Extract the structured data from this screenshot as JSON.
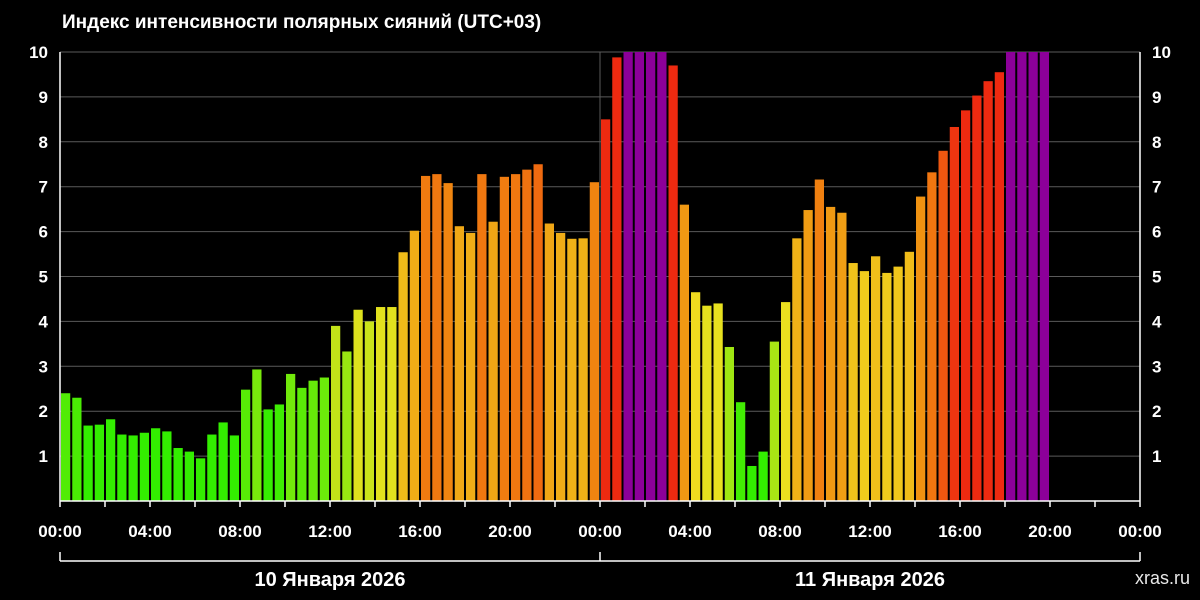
{
  "chart_data": {
    "type": "bar",
    "title": "Индекс интенсивности полярных сияний (UTC+03)",
    "y_range": [
      0,
      10
    ],
    "y_ticks": [
      "1",
      "2",
      "3",
      "4",
      "5",
      "6",
      "7",
      "8",
      "9",
      "10"
    ],
    "x_tick_labels": [
      "00:00",
      "04:00",
      "08:00",
      "12:00",
      "16:00",
      "20:00",
      "00:00",
      "04:00",
      "08:00",
      "12:00",
      "16:00",
      "20:00",
      "00:00"
    ],
    "bar_interval_minutes": 30,
    "days": [
      "10 Января 2026",
      "11 Января 2026"
    ],
    "grid": "horizontal",
    "color_scale": {
      "low": "#33ee00",
      "mid": "#f0e020",
      "high": "#f08a10",
      "red": "#ee2a10",
      "max": "#8c0099"
    },
    "values": [
      2.4,
      2.3,
      1.68,
      1.7,
      1.82,
      1.48,
      1.46,
      1.52,
      1.62,
      1.55,
      1.18,
      1.1,
      0.95,
      1.48,
      1.75,
      1.46,
      2.48,
      2.93,
      2.04,
      2.15,
      2.83,
      2.52,
      2.68,
      2.75,
      3.9,
      3.33,
      4.26,
      4.0,
      4.32,
      4.32,
      5.54,
      6.02,
      7.24,
      7.28,
      7.08,
      6.12,
      5.97,
      7.28,
      6.22,
      7.22,
      7.28,
      7.38,
      7.5,
      6.18,
      5.97,
      5.84,
      5.85,
      7.1,
      8.5,
      9.88,
      10,
      10,
      10,
      10,
      9.7,
      6.6,
      4.65,
      4.35,
      4.4,
      3.43,
      2.2,
      0.78,
      1.1,
      3.55,
      4.43,
      5.85,
      6.48,
      7.16,
      6.55,
      6.42,
      5.3,
      5.12,
      5.45,
      5.08,
      5.22,
      5.55,
      6.78,
      7.32,
      7.8,
      8.33,
      8.7,
      9.03,
      9.35,
      9.55,
      10,
      10,
      10,
      10
    ]
  },
  "watermark": "xras.ru"
}
